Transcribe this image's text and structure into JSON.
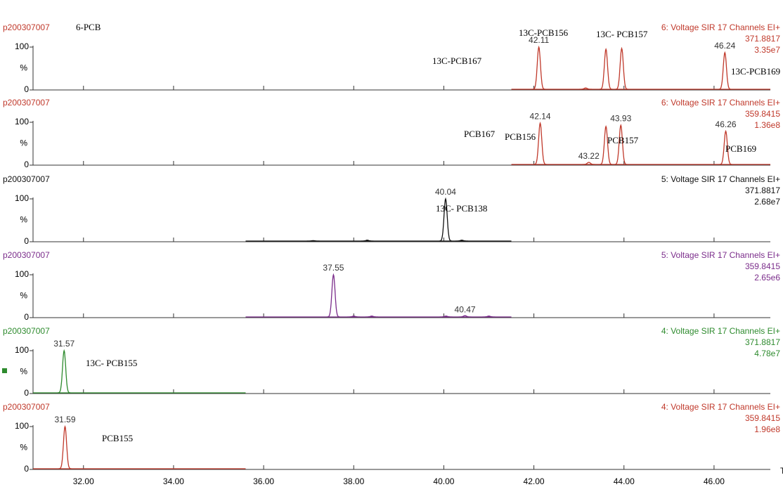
{
  "chart_data": [
    {
      "type": "chromatogram",
      "sample": "p200307007",
      "note": "6-PCB",
      "channel": "6: Voltage SIR 17 Channels EI+",
      "mass": "371.8817",
      "intensity": "3.35e7",
      "color": "#c0392b",
      "x": [
        42.11,
        43.15,
        43.6,
        43.95,
        46.24
      ],
      "values": [
        100,
        3,
        95,
        97,
        87
      ],
      "x_labels": [
        "42.11",
        null,
        null,
        null,
        "46.24"
      ],
      "annotations": [
        "13C-PCB167",
        "13C-PCB156",
        "13C- PCB157",
        "13C-PCB169"
      ],
      "trace_range": [
        41.5,
        47.25
      ],
      "ylim": [
        0,
        100
      ],
      "yticks": [
        0,
        100
      ],
      "ylabel": "%"
    },
    {
      "type": "chromatogram",
      "sample": "p200307007",
      "channel": "6: Voltage SIR 17 Channels EI+",
      "mass": "359.8415",
      "intensity": "1.36e8",
      "color": "#c0392b",
      "x": [
        42.14,
        43.22,
        43.6,
        43.93,
        46.26
      ],
      "values": [
        98,
        5,
        90,
        93,
        79
      ],
      "x_labels": [
        "42.14",
        "43.22",
        null,
        "43.93",
        "46.26"
      ],
      "annotations": [
        "PCB167",
        "PCB156",
        "PCB157",
        "PCB169"
      ],
      "trace_range": [
        41.5,
        47.25
      ],
      "ylim": [
        0,
        100
      ],
      "yticks": [
        0,
        100
      ],
      "ylabel": "%"
    },
    {
      "type": "chromatogram",
      "sample": "p200307007",
      "channel": "5: Voltage SIR 17 Channels EI+",
      "mass": "371.8817",
      "intensity": "2.68e7",
      "color": "#111111",
      "x": [
        37.1,
        38.3,
        40.04,
        40.4
      ],
      "values": [
        1,
        2,
        100,
        2
      ],
      "x_labels": [
        null,
        null,
        "40.04",
        null
      ],
      "annotations": [
        "13C- PCB138"
      ],
      "trace_range": [
        35.6,
        41.5
      ],
      "ylim": [
        0,
        100
      ],
      "yticks": [
        0,
        100
      ],
      "ylabel": "%"
    },
    {
      "type": "chromatogram",
      "sample": "p200307007",
      "channel": "5: Voltage SIR 17 Channels EI+",
      "mass": "359.8415",
      "intensity": "2.65e6",
      "color": "#7b2d8b",
      "x": [
        37.55,
        38.0,
        38.4,
        40.05,
        40.47,
        41.0
      ],
      "values": [
        100,
        2,
        2,
        2,
        3,
        2
      ],
      "x_labels": [
        "37.55",
        null,
        null,
        null,
        "40.47",
        null
      ],
      "annotations": [],
      "trace_range": [
        35.6,
        41.5
      ],
      "ylim": [
        0,
        100
      ],
      "yticks": [
        0,
        100
      ],
      "ylabel": "%"
    },
    {
      "type": "chromatogram",
      "sample": "p200307007",
      "channel": "4: Voltage SIR 17 Channels EI+",
      "mass": "371.8817",
      "intensity": "4.78e7",
      "color": "#2e8b2e",
      "x": [
        31.57
      ],
      "values": [
        100
      ],
      "x_labels": [
        "31.57"
      ],
      "annotations": [
        "13C- PCB155"
      ],
      "trace_range": [
        30.88,
        35.6
      ],
      "ylim": [
        0,
        100
      ],
      "yticks": [
        0,
        100
      ],
      "ylabel": "%"
    },
    {
      "type": "chromatogram",
      "sample": "p200307007",
      "channel": "4: Voltage SIR 17 Channels EI+",
      "mass": "359.8415",
      "intensity": "1.96e8",
      "color": "#c0392b",
      "x": [
        31.59
      ],
      "values": [
        100
      ],
      "x_labels": [
        "31.59"
      ],
      "annotations": [
        "PCB155"
      ],
      "trace_range": [
        30.88,
        35.6
      ],
      "ylim": [
        0,
        100
      ],
      "yticks": [
        0,
        100
      ],
      "ylabel": "%",
      "xlim": [
        30.88,
        47.25
      ],
      "xlabel": "Time",
      "xticks": [
        {
          "value": 32,
          "label": "32.00"
        },
        {
          "value": 34,
          "label": "34.00"
        },
        {
          "value": 36,
          "label": "36.00"
        },
        {
          "value": 38,
          "label": "38.00"
        },
        {
          "value": 40,
          "label": "40.00"
        },
        {
          "value": 42,
          "label": "42.00"
        },
        {
          "value": 44,
          "label": "44.00"
        },
        {
          "value": 46,
          "label": "46.00"
        }
      ]
    }
  ]
}
